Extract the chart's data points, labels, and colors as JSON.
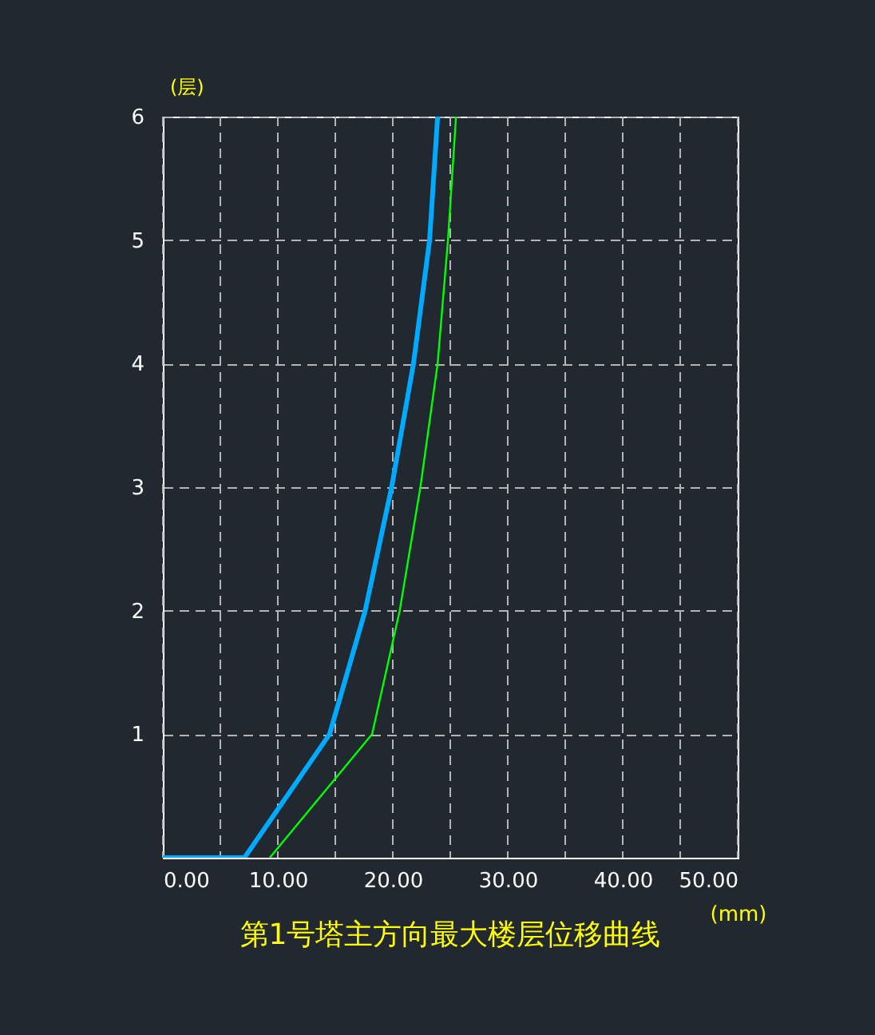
{
  "chart_data": {
    "type": "line",
    "title": "第1号塔主方向最大楼层位移曲线",
    "xlabel": "(mm)",
    "ylabel": "(层)",
    "series": [
      {
        "color": "#00aaff",
        "x": [
          0,
          7.1,
          14.5,
          17.6,
          19.9,
          21.8,
          23.2,
          23.9
        ],
        "values": [
          0,
          0,
          1,
          2,
          3,
          4,
          5,
          6
        ]
      },
      {
        "color": "#00ff00",
        "x": [
          9.3,
          18.2,
          20.6,
          22.4,
          23.9,
          24.8,
          25.5
        ],
        "values": [
          0,
          1,
          2,
          3,
          4,
          5,
          6
        ]
      }
    ],
    "xlim": [
      0,
      50
    ],
    "xticks": [
      {
        "value": 0,
        "label": "0.00"
      },
      {
        "value": 5,
        "label": null
      },
      {
        "value": 10,
        "label": "10.00"
      },
      {
        "value": 15,
        "label": null
      },
      {
        "value": 20,
        "label": "20.00"
      },
      {
        "value": 25,
        "label": null
      },
      {
        "value": 30,
        "label": "30.00"
      },
      {
        "value": 35,
        "label": null
      },
      {
        "value": 40,
        "label": "40.00"
      },
      {
        "value": 45,
        "label": null
      },
      {
        "value": 50,
        "label": "50.00"
      }
    ],
    "ylim": [
      0,
      6
    ],
    "yticks": [
      {
        "value": 0,
        "label": null
      },
      1,
      2,
      3,
      4,
      5,
      6
    ],
    "grid": true,
    "marker": "none",
    "line_style": "solid"
  }
}
